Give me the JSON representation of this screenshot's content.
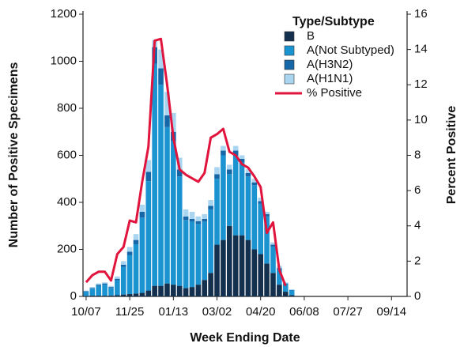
{
  "chart_data": {
    "type": "bar",
    "stacked": true,
    "x_label": "Week Ending Date",
    "y_label": "Number of Positive Specimens",
    "y2_label": "Percent Positive",
    "legend_title": "Type/Subtype",
    "legend": "upper right",
    "categories": [
      "10/07",
      null,
      null,
      null,
      null,
      null,
      null,
      "11/25",
      null,
      null,
      null,
      null,
      null,
      null,
      "01/13",
      null,
      null,
      null,
      null,
      null,
      null,
      "03/02",
      null,
      null,
      null,
      null,
      null,
      null,
      "04/20",
      null,
      null,
      null,
      null,
      null,
      null,
      "06/08",
      null,
      null,
      null,
      null,
      null,
      null,
      "07/27",
      null,
      null,
      null,
      null,
      null,
      null,
      "09/14",
      null,
      null
    ],
    "ylim": [
      0,
      1200
    ],
    "yticks": [
      0,
      200,
      400,
      600,
      800,
      1000,
      1200
    ],
    "y2lim": [
      0,
      16
    ],
    "y2ticks": [
      0,
      2,
      4,
      6,
      8,
      10,
      12,
      14,
      16
    ],
    "series": [
      {
        "name": "B",
        "type": "bar",
        "color": "#14304f",
        "values": [
          2,
          3,
          3,
          3,
          4,
          5,
          8,
          10,
          12,
          15,
          25,
          45,
          45,
          55,
          50,
          45,
          35,
          40,
          50,
          70,
          100,
          220,
          240,
          300,
          260,
          260,
          240,
          200,
          180,
          140,
          100,
          50,
          20,
          5,
          null,
          null,
          null,
          null,
          null,
          null,
          null,
          null,
          null,
          null,
          null,
          null,
          null,
          null,
          null,
          null,
          null,
          null
        ]
      },
      {
        "name": "A(Not Subtyped)",
        "type": "bar",
        "color": "#1b93d1",
        "values": [
          18,
          30,
          42,
          47,
          32,
          64,
          117,
          165,
          210,
          320,
          465,
          945,
          855,
          665,
          610,
          465,
          290,
          278,
          258,
          248,
          270,
          280,
          360,
          220,
          340,
          310,
          270,
          273,
          215,
          200,
          112,
          65,
          32,
          20,
          null,
          null,
          null,
          null,
          null,
          null,
          null,
          null,
          null,
          null,
          null,
          null,
          null,
          null,
          null,
          null,
          null,
          null
        ]
      },
      {
        "name": "A(H3N2)",
        "type": "bar",
        "color": "#1567a8",
        "values": [
          2,
          3,
          5,
          5,
          4,
          6,
          10,
          15,
          18,
          25,
          40,
          70,
          70,
          50,
          40,
          30,
          15,
          12,
          12,
          12,
          15,
          20,
          20,
          20,
          20,
          15,
          15,
          12,
          10,
          10,
          8,
          5,
          3,
          2,
          null,
          null,
          null,
          null,
          null,
          null,
          null,
          null,
          null,
          null,
          null,
          null,
          null,
          null,
          null,
          null,
          null,
          null
        ]
      },
      {
        "name": "A(H1N1)",
        "type": "bar",
        "color": "#a9d5f0",
        "values": [
          3,
          4,
          5,
          5,
          5,
          10,
          15,
          20,
          25,
          30,
          50,
          30,
          80,
          100,
          80,
          50,
          30,
          30,
          20,
          20,
          25,
          30,
          20,
          20,
          20,
          15,
          15,
          15,
          15,
          10,
          10,
          10,
          5,
          3,
          null,
          null,
          null,
          null,
          null,
          null,
          null,
          null,
          null,
          null,
          null,
          null,
          null,
          null,
          null,
          null,
          null,
          null
        ]
      },
      {
        "name": "% Positive",
        "type": "line",
        "axis": "y2",
        "color": "#e0143c",
        "values": [
          0.8,
          1.2,
          1.4,
          1.4,
          0.9,
          2.4,
          2.8,
          4.3,
          4.2,
          6.5,
          8.5,
          14.5,
          14.6,
          12,
          9,
          7.2,
          6.9,
          6.7,
          6.5,
          7,
          9,
          9.2,
          9.5,
          8.2,
          8,
          7.5,
          7.3,
          6.8,
          6.2,
          3.6,
          4.2,
          1.5,
          0.6,
          null,
          null,
          null,
          null,
          null,
          null,
          null,
          null,
          null,
          null,
          null,
          null,
          null,
          null,
          null,
          null,
          null,
          null,
          null
        ]
      }
    ]
  }
}
